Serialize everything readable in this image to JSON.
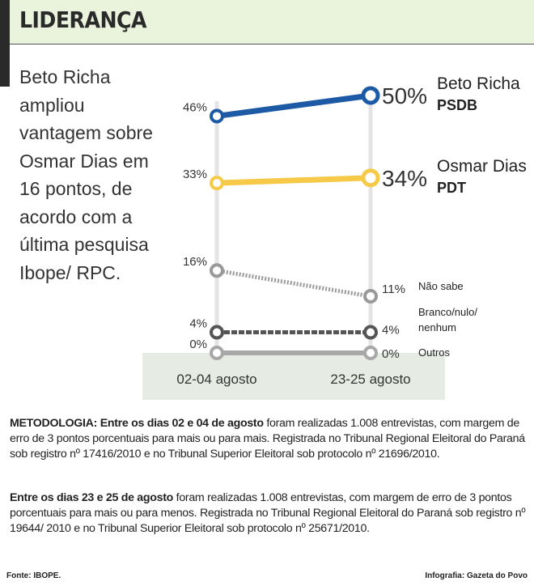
{
  "header": {
    "title": "LIDERANÇA"
  },
  "lede": "Beto Richa ampliou vantagem sobre Osmar Dias em 16 pontos, de acordo com a última pesquisa Ibope/ RPC.",
  "chart_data": {
    "type": "line",
    "categories": [
      "02-04 agosto",
      "23-25 agosto"
    ],
    "ylim": [
      0,
      50
    ],
    "grid": false,
    "series": [
      {
        "name": "Beto Richa",
        "sub": "PSDB",
        "values": [
          46,
          50
        ],
        "labels": [
          "46%",
          "50%"
        ],
        "color": "#1d5aa6",
        "style": "solid"
      },
      {
        "name": "Osmar Dias",
        "sub": "PDT",
        "values": [
          33,
          34
        ],
        "labels": [
          "33%",
          "34%"
        ],
        "color": "#f7c948",
        "style": "solid"
      },
      {
        "name": "Não sabe",
        "sub": "",
        "values": [
          16,
          11
        ],
        "labels": [
          "16%",
          "11%"
        ],
        "color": "#9a9a9a",
        "style": "dotted"
      },
      {
        "name": "Branco/nulo/ nenhum",
        "sub": "",
        "values": [
          4,
          4
        ],
        "labels": [
          "4%",
          "4%"
        ],
        "color": "#555555",
        "style": "dashed"
      },
      {
        "name": "Outros",
        "sub": "",
        "values": [
          0,
          0
        ],
        "labels": [
          "0%",
          "0%"
        ],
        "color": "#a8a8a8",
        "style": "solid"
      }
    ]
  },
  "methodology": {
    "p1_bold": "METODOLOGIA: Entre os dias 02 e 04 de agosto",
    "p1": " foram realizadas 1.008 entrevistas, com margem de erro de 3 pontos porcentuais para mais ou para mais. Registrada no Tribunal Regional Eleitoral do Paraná sob registro nº 17416/2010 e no Tribunal Superior Eleitoral sob protocolo nº 21696/2010.",
    "p2_bold": "Entre os dias 23 e 25 de agosto",
    "p2": " foram realizadas 1.008 entrevistas, com margem de erro de 3 pontos porcentuais para mais ou para menos. Registrada no Tribunal Regional Eleitoral do Paraná sob registro nº 19644/ 2010 e no Tribunal Superior Eleitoral sob protocolo nº 25671/2010."
  },
  "footer": {
    "source": "Fonte: IBOPE.",
    "credit": "Infografia: Gazeta do Povo"
  }
}
